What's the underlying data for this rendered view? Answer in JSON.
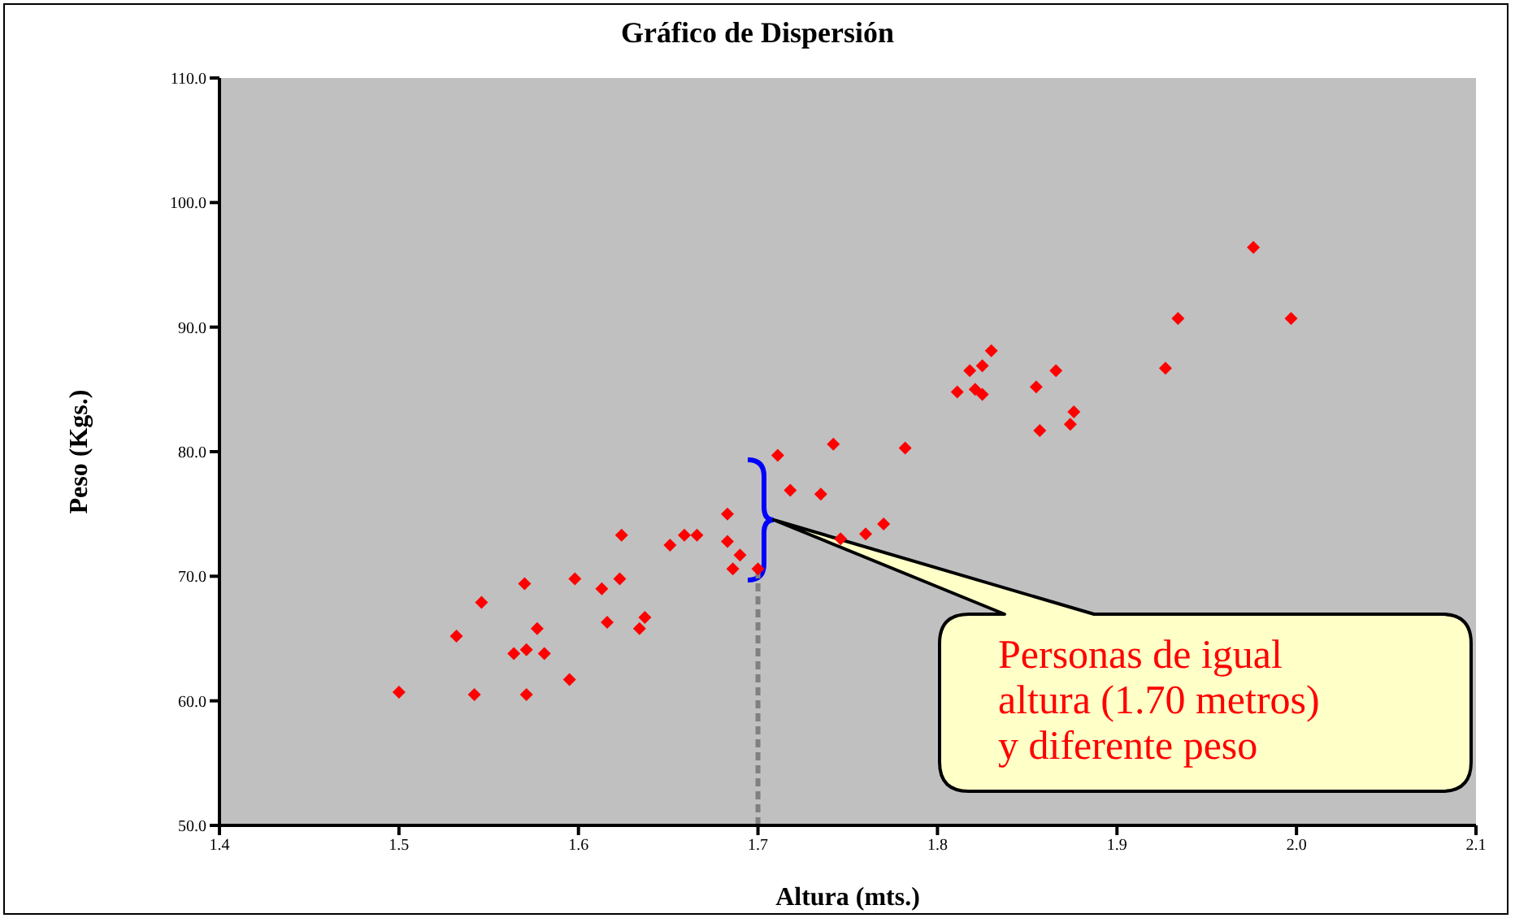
{
  "chart_data": {
    "type": "scatter",
    "title": "Gráfico de Dispersión",
    "xlabel": "Altura (mts.)",
    "ylabel": "Peso (Kgs.)",
    "xlim": [
      1.4,
      2.1
    ],
    "xticks": [
      {
        "value": 1.4,
        "label": "1.4"
      },
      {
        "value": 1.5,
        "label": "1.5"
      },
      {
        "value": 1.6,
        "label": "1.6"
      },
      {
        "value": 1.7,
        "label": "1.7"
      },
      {
        "value": 1.8,
        "label": "1.8"
      },
      {
        "value": 1.9,
        "label": "1.9"
      },
      {
        "value": 2.0,
        "label": "2.0"
      },
      {
        "value": 2.1,
        "label": "2.1"
      }
    ],
    "ylim": [
      50,
      110
    ],
    "yticks": [
      {
        "value": 50,
        "label": "50.0"
      },
      {
        "value": 60,
        "label": "60.0"
      },
      {
        "value": 70,
        "label": "70.0"
      },
      {
        "value": 80,
        "label": "80.0"
      },
      {
        "value": 90,
        "label": "90.0"
      },
      {
        "value": 100,
        "label": "100.0"
      },
      {
        "value": 110,
        "label": "110.0"
      }
    ],
    "grid": false,
    "legend": false,
    "marker": "diamond",
    "series": [
      {
        "color": "#ff0000",
        "x": [
          1.5,
          1.532,
          1.542,
          1.546,
          1.564,
          1.571,
          1.57,
          1.571,
          1.577,
          1.581,
          1.595,
          1.598,
          1.613,
          1.616,
          1.623,
          1.624,
          1.634,
          1.637,
          1.651,
          1.659,
          1.666,
          1.683,
          1.683,
          1.69,
          1.686,
          1.7,
          1.711,
          1.718,
          1.735,
          1.742,
          1.746,
          1.76,
          1.77,
          1.782,
          1.811,
          1.818,
          1.821,
          1.825,
          1.825,
          1.83,
          1.855,
          1.857,
          1.866,
          1.874,
          1.876,
          1.927,
          1.934,
          1.976,
          1.997
        ],
        "values": [
          60.7,
          65.2,
          60.5,
          67.9,
          63.8,
          64.1,
          69.4,
          60.5,
          65.8,
          63.8,
          61.7,
          69.8,
          69.0,
          66.3,
          69.8,
          73.3,
          65.8,
          66.7,
          72.5,
          73.3,
          73.3,
          75.0,
          72.8,
          71.7,
          70.6,
          70.6,
          79.7,
          76.9,
          76.6,
          80.6,
          73.0,
          73.4,
          74.2,
          80.3,
          84.8,
          86.5,
          85.0,
          86.9,
          84.6,
          88.1,
          85.2,
          81.7,
          86.5,
          82.2,
          83.2,
          86.7,
          90.7,
          96.4,
          90.7
        ]
      }
    ],
    "ref_lines": [
      {
        "axis": "x",
        "value": 1.7,
        "color": "#808080",
        "line_style": "dashed"
      }
    ],
    "annotations": [
      "Personas de igual altura (1.70 metros) y diferente peso"
    ]
  }
}
